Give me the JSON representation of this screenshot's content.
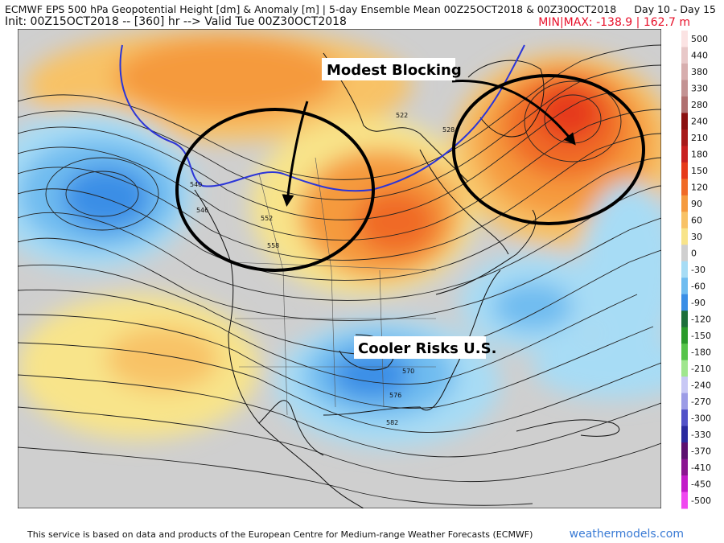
{
  "header": {
    "line1": "ECMWF EPS 500 hPa Geopotential Height [dm] & Anomaly [m] | 5-day Ensemble Mean 00Z25OCT2018 & 00Z30OCT2018",
    "line1_right": "Day 10 - Day 15",
    "line2": "Init: 00Z15OCT2018 -- [360] hr --> Valid Tue 00Z30OCT2018",
    "line2_right": "MIN|MAX: -138.9 | 162.7 m"
  },
  "annotations": {
    "blocking": "Modest Blocking",
    "cooler": "Cooler Risks U.S."
  },
  "contour_labels": [
    "540",
    "546",
    "552",
    "558",
    "522",
    "528",
    "570",
    "576",
    "582"
  ],
  "legend": {
    "levels": [
      "500",
      "440",
      "380",
      "330",
      "280",
      "240",
      "210",
      "180",
      "150",
      "120",
      "90",
      "60",
      "30",
      "0",
      "-30",
      "-60",
      "-90",
      "-120",
      "-150",
      "-180",
      "-210",
      "-240",
      "-270",
      "-300",
      "-330",
      "-370",
      "-410",
      "-450",
      "-500"
    ],
    "colors": [
      "#fbe3e3",
      "#e8c8c8",
      "#d7aeae",
      "#c39393",
      "#b07070",
      "#8a1010",
      "#a71a1a",
      "#c82020",
      "#e63a1a",
      "#f06a26",
      "#f59a3e",
      "#f8c266",
      "#f8e48a",
      "#cfcfcf",
      "#a7dcf5",
      "#6fbcf0",
      "#3a8ee6",
      "#1c6e3a",
      "#2a9a2a",
      "#56c44a",
      "#a0e68e",
      "#c8c8f5",
      "#9c9ce6",
      "#5252c8",
      "#2a2a9e",
      "#5c1070",
      "#8a1490",
      "#c21ac8",
      "#f048f0"
    ]
  },
  "footer": {
    "left": "This service is based on data and products of the European Centre for Medium-range Weather Forecasts (ECMWF)",
    "right": "weathermodels.com"
  }
}
